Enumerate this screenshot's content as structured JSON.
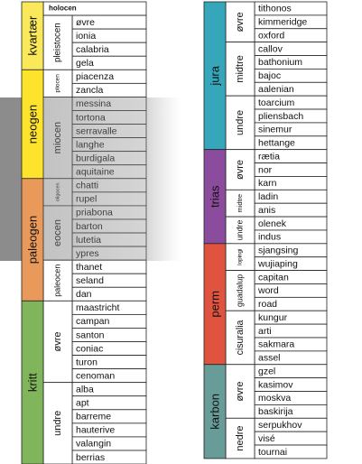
{
  "left": {
    "periods": [
      {
        "label": "kvartær",
        "color": "#f8e85a",
        "epochs": [
          {
            "label": "holocen",
            "stages": []
          },
          {
            "label": "pleistocen",
            "stages": [
              "øvre",
              "ionia",
              "calabria",
              "gela"
            ]
          }
        ]
      },
      {
        "label": "neogen",
        "color": "#fde32c",
        "epochs": [
          {
            "label": "pliocen",
            "stages": [
              "piacenza",
              "zancla"
            ]
          },
          {
            "label": "miocen",
            "stages": [
              "messina",
              "tortona",
              "serravalle",
              "langhe",
              "burdigala",
              "aquitaine"
            ]
          }
        ]
      },
      {
        "label": "paleogen",
        "color": "#e9995a",
        "epochs": [
          {
            "label": "oligocen",
            "stages": [
              "chatti",
              "rupel"
            ]
          },
          {
            "label": "eocen",
            "stages": [
              "priabona",
              "barton",
              "lutetia",
              "ypres"
            ]
          },
          {
            "label": "paleocen",
            "stages": [
              "thanet",
              "seland",
              "dan"
            ]
          }
        ]
      },
      {
        "label": "kritt",
        "color": "#80b55c",
        "epochs": [
          {
            "label": "øvre",
            "stages": [
              "maastricht",
              "campan",
              "santon",
              "coniac",
              "turon",
              "cenoman"
            ]
          },
          {
            "label": "undre",
            "stages": [
              "alba",
              "apt",
              "barreme",
              "hauterive",
              "valangin",
              "berrias"
            ]
          }
        ]
      }
    ]
  },
  "right": {
    "periods": [
      {
        "label": "jura",
        "color": "#36a7bb",
        "epochs": [
          {
            "label": "øvre",
            "stages": [
              "tithonos",
              "kimmeridge",
              "oxford"
            ]
          },
          {
            "label": "midtre",
            "stages": [
              "callov",
              "bathonium",
              "bajoc",
              "aalenian"
            ]
          },
          {
            "label": "undre",
            "stages": [
              "toarcium",
              "pliensbach",
              "sinemur",
              "hettange"
            ]
          }
        ]
      },
      {
        "label": "trias",
        "color": "#8b4c9e",
        "epochs": [
          {
            "label": "øvre",
            "stages": [
              "rætia",
              "nor",
              "karn"
            ]
          },
          {
            "label": "midtre",
            "stages": [
              "ladin",
              "anis"
            ]
          },
          {
            "label": "undre",
            "stages": [
              "olenek",
              "indus"
            ]
          }
        ]
      },
      {
        "label": "perm",
        "color": "#e0543f",
        "epochs": [
          {
            "label": "lopingi",
            "stages": [
              "sjangsing",
              "wujiaping"
            ]
          },
          {
            "label": "guadalup",
            "stages": [
              "capitan",
              "word",
              "road"
            ]
          },
          {
            "label": "cisuralia",
            "stages": [
              "kungur",
              "arti",
              "sakmara",
              "assel"
            ]
          }
        ]
      },
      {
        "label": "karbon",
        "color": "#689c98",
        "epochs": [
          {
            "label": "øvre",
            "stages": [
              "gzel",
              "kasimov",
              "moskva",
              "baskirija"
            ]
          },
          {
            "label": "nedre",
            "stages": [
              "serpukhov",
              "visé",
              "tournai"
            ]
          }
        ]
      }
    ]
  }
}
